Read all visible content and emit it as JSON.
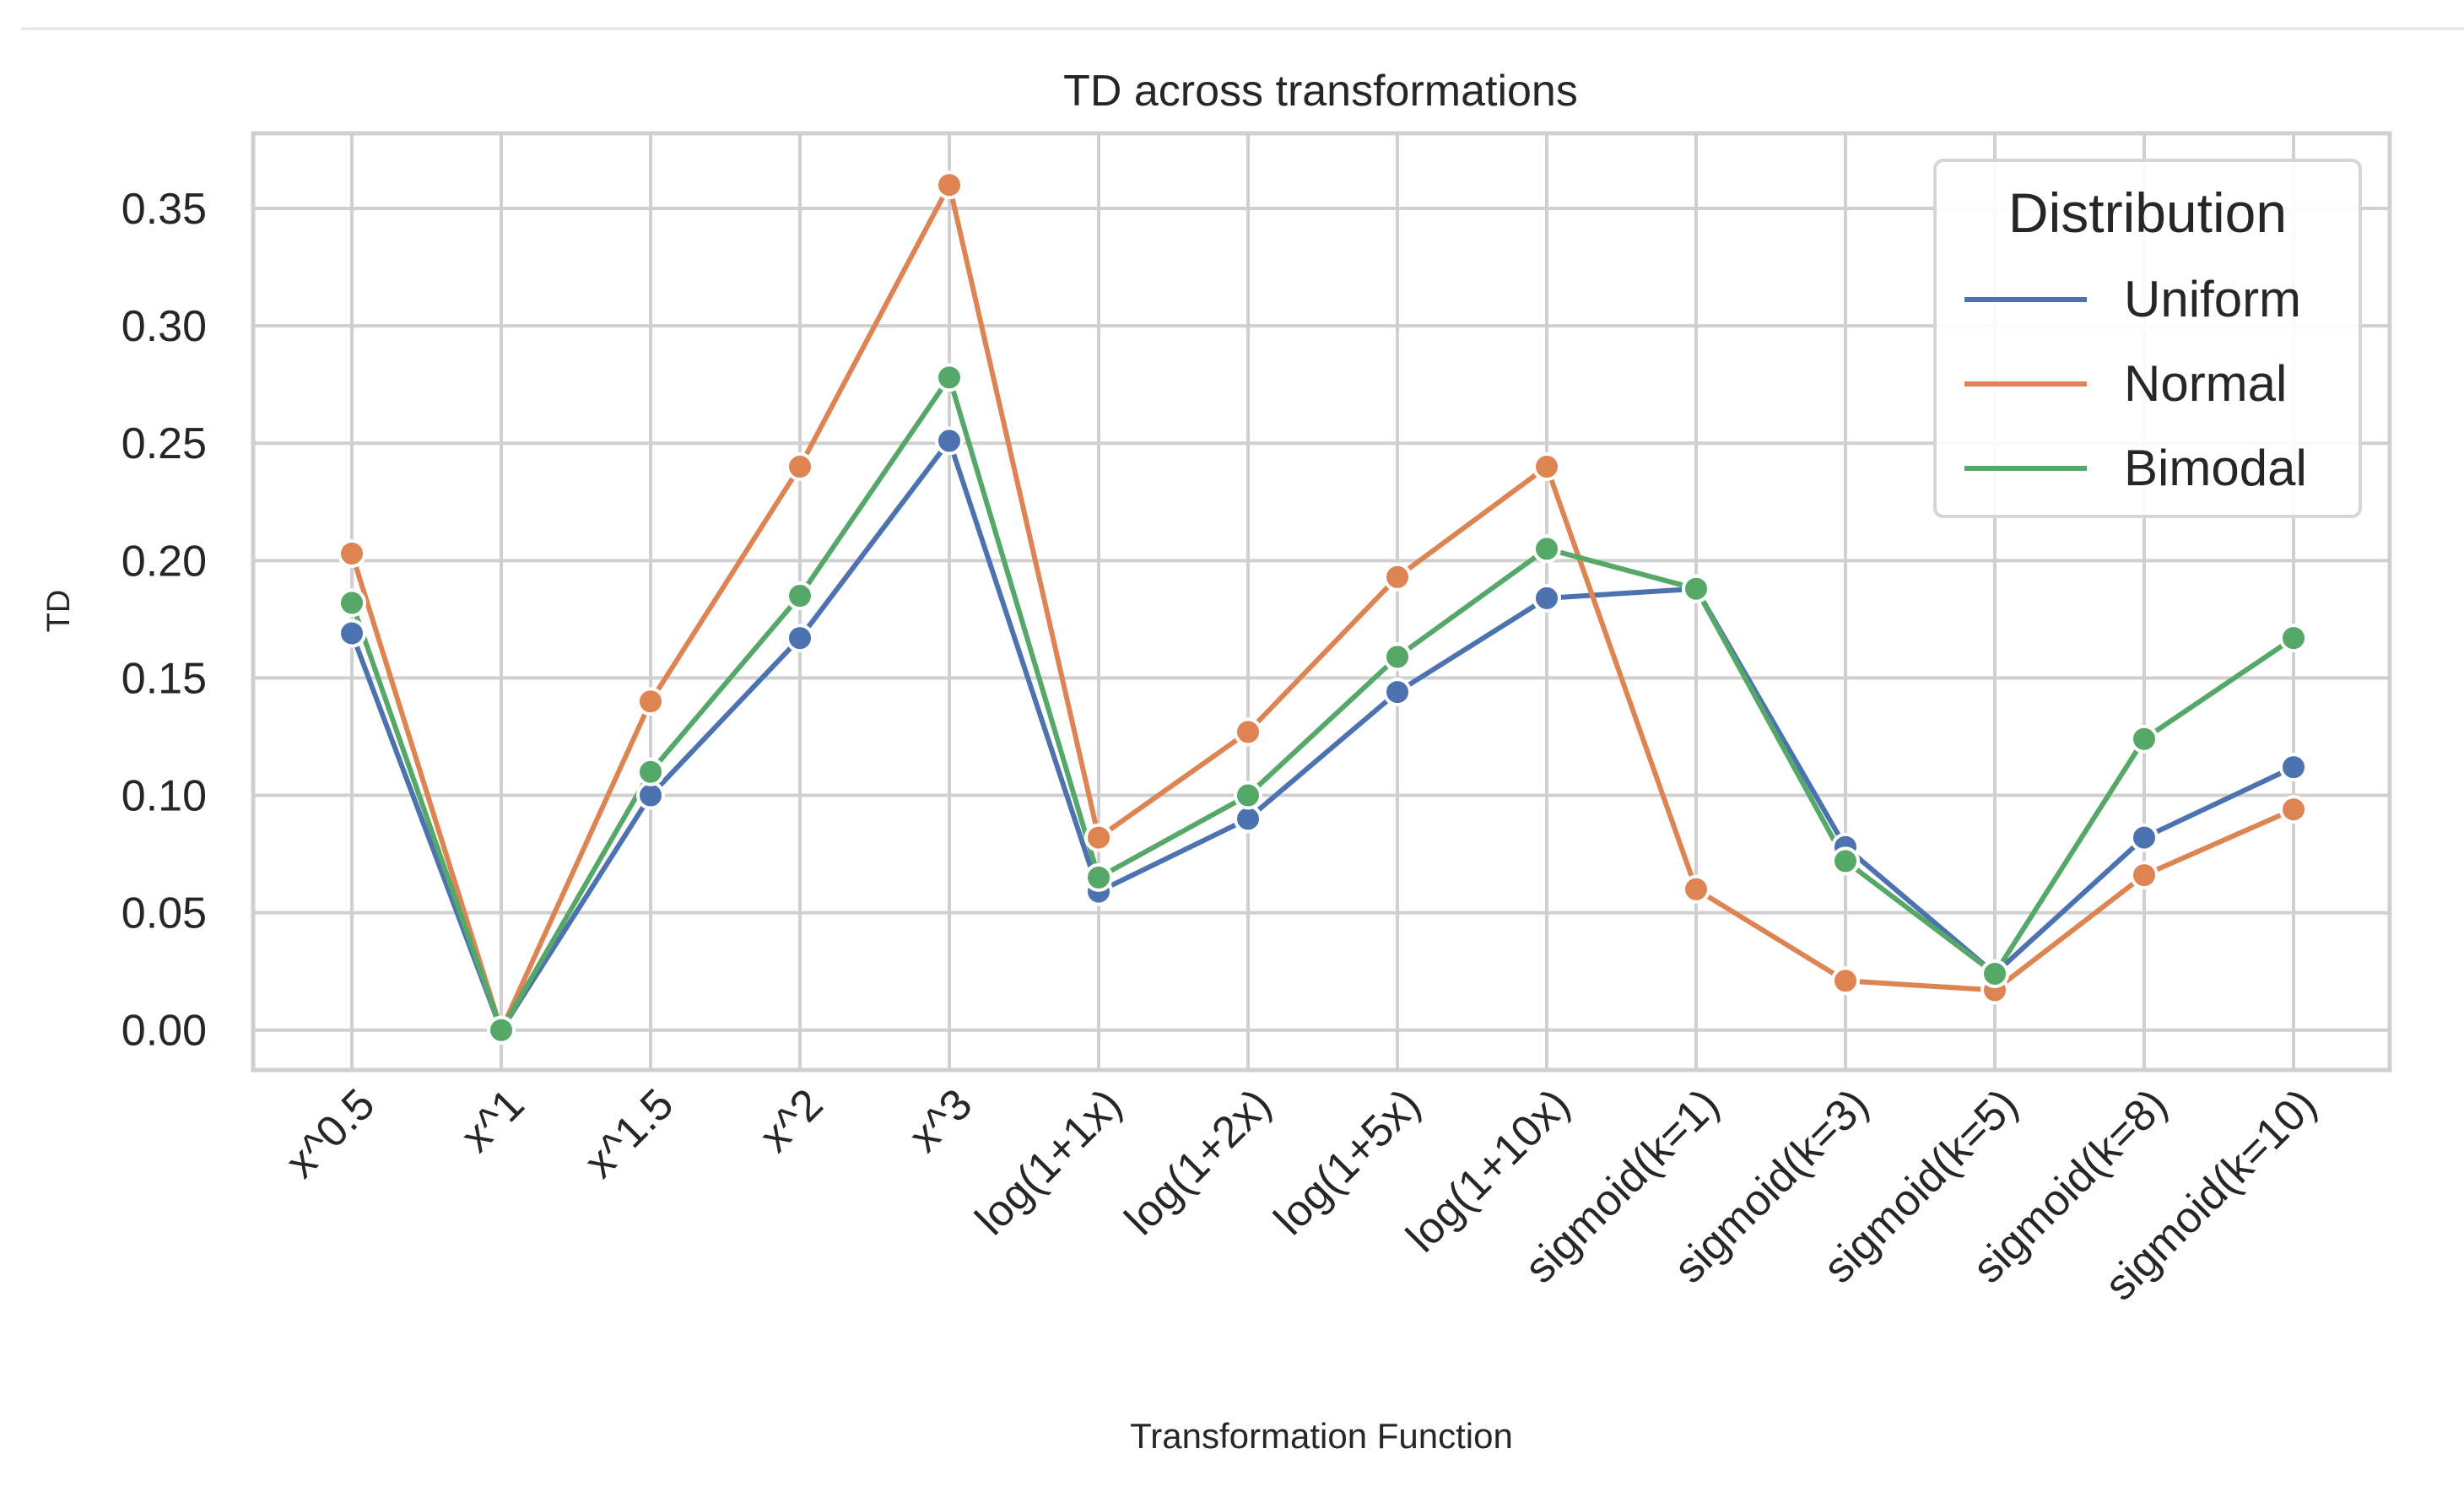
{
  "chart_data": {
    "type": "line",
    "title": "TD across transformations",
    "xlabel": "Transformation Function",
    "ylabel": "TD",
    "ylim": [
      -0.017,
      0.382
    ],
    "yticks": [
      0.0,
      0.05,
      0.1,
      0.15,
      0.2,
      0.25,
      0.3,
      0.35
    ],
    "ytick_labels": [
      "0.00",
      "0.05",
      "0.10",
      "0.15",
      "0.20",
      "0.25",
      "0.30",
      "0.35"
    ],
    "grid": true,
    "categories": [
      "x^0.5",
      "x^1",
      "x^1.5",
      "x^2",
      "x^3",
      "log(1+1x)",
      "log(1+2x)",
      "log(1+5x)",
      "log(1+10x)",
      "sigmoid(k=1)",
      "sigmoid(k=3)",
      "sigmoid(k=5)",
      "sigmoid(k=8)",
      "sigmoid(k=10)"
    ],
    "legend": {
      "title": "Distribution",
      "position": "top-right"
    },
    "series": [
      {
        "name": "Uniform",
        "color": "#4c72b0",
        "values": [
          0.169,
          0.0,
          0.1,
          0.167,
          0.251,
          0.059,
          0.09,
          0.144,
          0.184,
          0.188,
          0.078,
          0.024,
          0.082,
          0.112
        ]
      },
      {
        "name": "Normal",
        "color": "#dd8452",
        "values": [
          0.203,
          0.0,
          0.14,
          0.24,
          0.36,
          0.082,
          0.127,
          0.193,
          0.24,
          0.06,
          0.021,
          0.017,
          0.066,
          0.094
        ]
      },
      {
        "name": "Bimodal",
        "color": "#55a868",
        "values": [
          0.182,
          0.0,
          0.11,
          0.185,
          0.278,
          0.065,
          0.1,
          0.159,
          0.205,
          0.188,
          0.072,
          0.024,
          0.124,
          0.167
        ]
      }
    ]
  }
}
